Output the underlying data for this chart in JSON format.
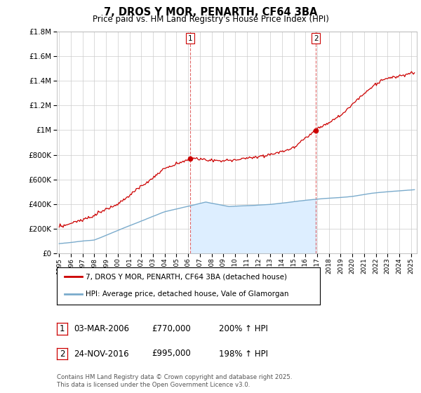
{
  "title": "7, DROS Y MOR, PENARTH, CF64 3BA",
  "subtitle": "Price paid vs. HM Land Registry's House Price Index (HPI)",
  "legend_line1": "7, DROS Y MOR, PENARTH, CF64 3BA (detached house)",
  "legend_line2": "HPI: Average price, detached house, Vale of Glamorgan",
  "annotation1_date": "03-MAR-2006",
  "annotation1_price": "£770,000",
  "annotation1_hpi": "200% ↑ HPI",
  "annotation2_date": "24-NOV-2016",
  "annotation2_price": "£995,000",
  "annotation2_hpi": "198% ↑ HPI",
  "footer": "Contains HM Land Registry data © Crown copyright and database right 2025.\nThis data is licensed under the Open Government Licence v3.0.",
  "vline1_year": 2006.17,
  "vline2_year": 2016.9,
  "sale1_price": 770000,
  "sale2_price": 995000,
  "ylim": [
    0,
    1800000
  ],
  "xlim_start": 1994.8,
  "xlim_end": 2025.5,
  "red_color": "#cc0000",
  "blue_color": "#7aabcc",
  "blue_fill_color": "#ddeeff",
  "background_color": "#ffffff",
  "grid_color": "#cccccc"
}
